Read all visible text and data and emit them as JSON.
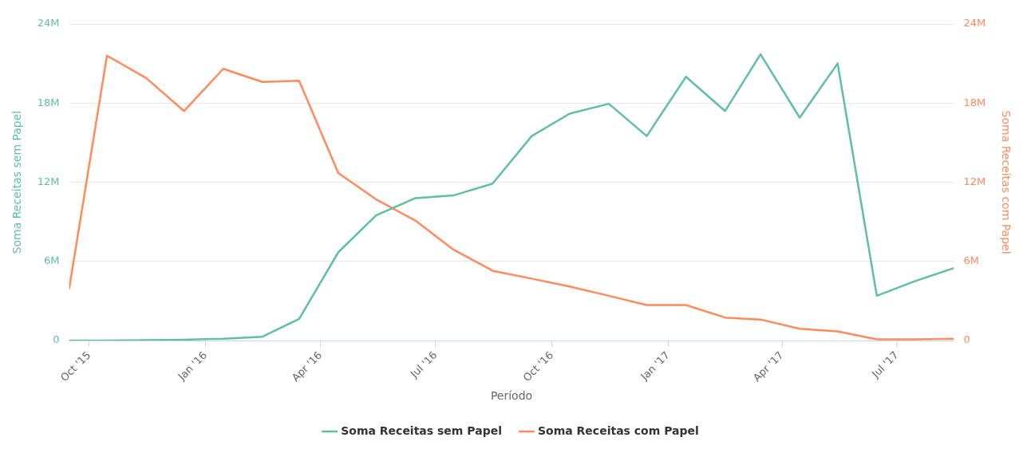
{
  "chart_data": {
    "type": "line",
    "xlabel": "Período",
    "ylabel": "Soma Receitas sem Papel",
    "y2label": "Soma Receitas com Papel",
    "x": [
      "2015-09-15",
      "2015-10-15",
      "2015-11-15",
      "2015-12-15",
      "2016-01-15",
      "2016-02-15",
      "2016-03-15",
      "2016-04-15",
      "2016-05-15",
      "2016-06-15",
      "2016-07-15",
      "2016-08-15",
      "2016-09-15",
      "2016-10-15",
      "2016-11-15",
      "2016-12-15",
      "2017-01-15",
      "2017-02-15",
      "2017-03-15",
      "2017-04-15",
      "2017-05-15",
      "2017-06-15",
      "2017-07-15",
      "2017-08-15"
    ],
    "series": [
      {
        "name": "Soma Receitas sem Papel",
        "color": "#5fc09b",
        "values": [
          0,
          10000,
          30000,
          70000,
          150000,
          300000,
          1650000,
          6700000,
          9500000,
          10800000,
          11000000,
          11900000,
          15500000,
          17200000,
          17950000,
          15500000,
          20000000,
          17400000,
          21700000,
          16900000,
          21000000,
          3400000,
          4500000,
          5500000
        ]
      },
      {
        "name": "Soma Receitas com Papel",
        "color": "#ff8a5c",
        "axis": "y2",
        "values": [
          3900000,
          21600000,
          19900000,
          17400000,
          20600000,
          19600000,
          19700000,
          12700000,
          10700000,
          9100000,
          6900000,
          5300000,
          4700000,
          4100000,
          3400000,
          2700000,
          2700000,
          1750000,
          1600000,
          900000,
          700000,
          100000,
          100000,
          150000
        ]
      }
    ],
    "xlim": [
      "2015-09-15",
      "2017-08-15"
    ],
    "xticks": [
      {
        "value": "2015-10-01",
        "label": "Oct '15"
      },
      {
        "value": "2016-01-01",
        "label": "Jan '16"
      },
      {
        "value": "2016-04-01",
        "label": "Apr '16"
      },
      {
        "value": "2016-07-01",
        "label": "Jul '16"
      },
      {
        "value": "2016-10-01",
        "label": "Oct '16"
      },
      {
        "value": "2017-01-01",
        "label": "Jan '17"
      },
      {
        "value": "2017-04-01",
        "label": "Apr '17"
      },
      {
        "value": "2017-07-01",
        "label": "Jul '17"
      }
    ],
    "ylim": [
      0,
      24000000
    ],
    "yticks": [
      0,
      {
        "value": 6000000,
        "label": "6M"
      },
      {
        "value": 12000000,
        "label": "12M"
      },
      {
        "value": 18000000,
        "label": "18M"
      },
      {
        "value": 24000000,
        "label": "24M"
      }
    ],
    "y2lim": [
      0,
      24000000
    ],
    "y2ticks": [
      0,
      {
        "value": 6000000,
        "label": "6M"
      },
      {
        "value": 12000000,
        "label": "12M"
      },
      {
        "value": 18000000,
        "label": "18M"
      },
      {
        "value": 24000000,
        "label": "24M"
      }
    ],
    "grid": "y",
    "legend": "bottom",
    "marker": "none",
    "line_style": "solid"
  }
}
